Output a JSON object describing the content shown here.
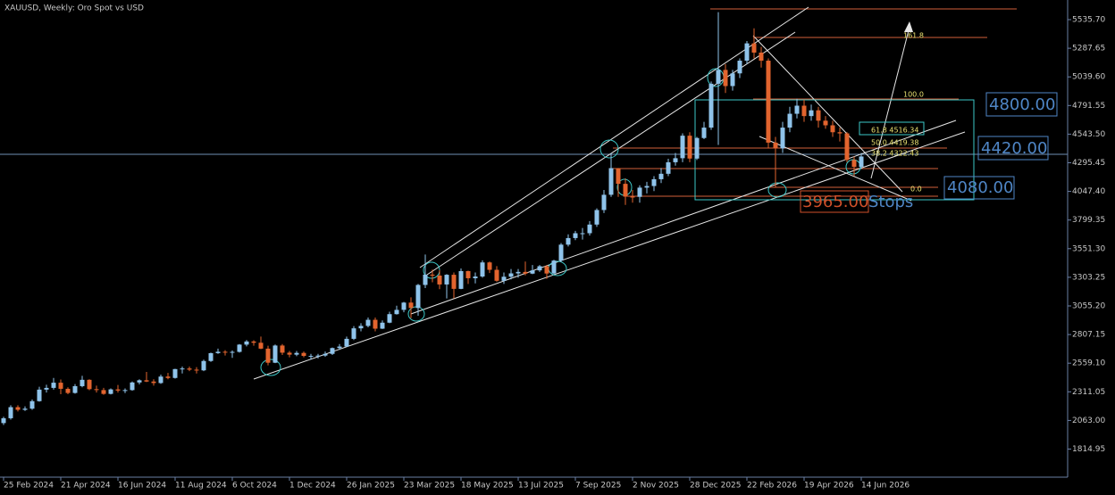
{
  "chart_data": {
    "type": "candlestick",
    "title": "XAUUSD, Weekly:  Oro Spot vs USD",
    "categories": [
      "25 Feb 2024",
      null,
      null,
      null,
      null,
      null,
      null,
      null,
      "21 Apr 2024",
      null,
      null,
      null,
      null,
      null,
      null,
      null,
      "16 Jun 2024",
      null,
      null,
      null,
      null,
      null,
      null,
      null,
      "11 Aug 2024",
      null,
      null,
      null,
      null,
      null,
      null,
      null,
      "6 Oct 2024",
      null,
      null,
      null,
      null,
      null,
      null,
      null,
      "1 Dec 2024",
      null,
      null,
      null,
      null,
      null,
      null,
      null,
      "26 Jan 2025",
      null,
      null,
      null,
      null,
      null,
      null,
      null,
      "23 Mar 2025",
      null,
      null,
      null,
      null,
      null,
      null,
      null,
      "18 May 2025",
      null,
      null,
      null,
      null,
      null,
      null,
      null,
      "13 Jul 2025",
      null,
      null,
      null,
      null,
      null,
      null,
      null,
      "7 Sep 2025",
      null,
      null,
      null,
      null,
      null,
      null,
      null,
      "2 Nov 2025",
      null,
      null,
      null,
      null,
      null,
      null,
      null,
      "28 Dec 2025",
      null,
      null,
      null,
      null,
      null,
      null,
      null,
      "22 Feb 2026",
      null,
      null,
      null,
      null,
      null,
      null,
      null,
      "19 Apr 2026",
      null,
      null,
      null,
      null,
      null,
      null,
      null,
      "14 Jun 2026"
    ],
    "open": [
      2040,
      2082,
      2178,
      2155,
      2165,
      2230,
      2330,
      2345,
      2390,
      2337,
      2301,
      2360,
      2415,
      2334,
      2326,
      2293,
      2332,
      2322,
      2326,
      2392,
      2411,
      2400,
      2387,
      2443,
      2431,
      2508,
      2513,
      2503,
      2497,
      2578,
      2646,
      2658,
      2653,
      2657,
      2720,
      2747,
      2736,
      2685,
      2563,
      2712,
      2650,
      2633,
      2648,
      2622,
      2622,
      2625,
      2640,
      2690,
      2703,
      2770,
      2861,
      2882,
      2935,
      2858,
      2910,
      2984,
      3021,
      3084,
      3037,
      3237,
      3326,
      3318,
      3241,
      3325,
      3203,
      3357,
      3295,
      3310,
      3432,
      3368,
      3273,
      3308,
      3337,
      3350,
      3335,
      3363,
      3399,
      3336,
      3448,
      3586,
      3643,
      3685,
      3685,
      3760,
      3886,
      4018,
      4249,
      4113,
      4002,
      4000,
      4080,
      4094,
      4153,
      4200,
      4300,
      4335,
      4530,
      4332,
      4510,
      4600,
      4980,
      5100,
      4960,
      5070,
      5180,
      5330,
      5250,
      5180,
      4470,
      4420,
      4600,
      4720,
      4790,
      4700,
      4750,
      4660,
      4620,
      4560,
      4550,
      4320,
      4260
    ],
    "high": [
      2095,
      2195,
      2195,
      2185,
      2245,
      2355,
      2372,
      2431,
      2418,
      2350,
      2378,
      2450,
      2420,
      2365,
      2345,
      2340,
      2370,
      2340,
      2400,
      2420,
      2483,
      2420,
      2460,
      2475,
      2510,
      2530,
      2530,
      2525,
      2590,
      2650,
      2685,
      2672,
      2670,
      2725,
      2760,
      2758,
      2790,
      2710,
      2721,
      2725,
      2665,
      2665,
      2660,
      2640,
      2640,
      2660,
      2695,
      2725,
      2790,
      2880,
      2905,
      2955,
      2955,
      2930,
      3005,
      3057,
      3090,
      3130,
      3245,
      3500,
      3370,
      3365,
      3330,
      3345,
      3380,
      3360,
      3345,
      3450,
      3440,
      3400,
      3345,
      3375,
      3375,
      3440,
      3410,
      3410,
      3410,
      3455,
      3600,
      3675,
      3705,
      3730,
      3790,
      3900,
      4060,
      4380,
      4250,
      4160,
      4060,
      4100,
      4130,
      4180,
      4250,
      4330,
      4380,
      4550,
      4560,
      4520,
      4650,
      5000,
      5600,
      5150,
      5100,
      5200,
      5350,
      5460,
      5300,
      5200,
      4520,
      4650,
      4780,
      4850,
      4840,
      4800,
      4780,
      4700,
      4660,
      4600,
      4560,
      4350,
      4380
    ],
    "low": [
      2024,
      2070,
      2140,
      2145,
      2155,
      2225,
      2305,
      2330,
      2290,
      2290,
      2295,
      2350,
      2325,
      2305,
      2285,
      2288,
      2305,
      2300,
      2320,
      2375,
      2395,
      2365,
      2380,
      2420,
      2425,
      2470,
      2490,
      2470,
      2490,
      2570,
      2640,
      2625,
      2605,
      2650,
      2705,
      2710,
      2680,
      2540,
      2560,
      2630,
      2610,
      2620,
      2610,
      2590,
      2600,
      2615,
      2630,
      2675,
      2700,
      2760,
      2835,
      2870,
      2835,
      2855,
      2905,
      2980,
      3000,
      2950,
      2970,
      3210,
      3260,
      3200,
      3120,
      3120,
      3200,
      3245,
      3250,
      3300,
      3340,
      3265,
      3245,
      3285,
      3300,
      3320,
      3330,
      3350,
      3290,
      3330,
      3435,
      3570,
      3625,
      3630,
      3665,
      3740,
      3860,
      4000,
      4000,
      3930,
      3950,
      3950,
      4030,
      4050,
      4120,
      4180,
      4270,
      4300,
      4300,
      4320,
      4500,
      4580,
      4450,
      4900,
      4920,
      5030,
      5150,
      5200,
      5120,
      4420,
      4080,
      4380,
      4560,
      4680,
      4650,
      4660,
      4600,
      4590,
      4520,
      4480,
      4300,
      4180,
      4240
    ],
    "close": [
      2082,
      2178,
      2155,
      2165,
      2230,
      2330,
      2345,
      2390,
      2337,
      2301,
      2360,
      2415,
      2334,
      2326,
      2293,
      2332,
      2322,
      2326,
      2392,
      2411,
      2400,
      2387,
      2443,
      2431,
      2508,
      2513,
      2503,
      2497,
      2578,
      2646,
      2658,
      2653,
      2657,
      2720,
      2747,
      2736,
      2685,
      2563,
      2712,
      2650,
      2633,
      2648,
      2622,
      2622,
      2625,
      2640,
      2690,
      2703,
      2770,
      2861,
      2882,
      2935,
      2858,
      2910,
      2984,
      3021,
      3084,
      3037,
      3237,
      3326,
      3318,
      3241,
      3325,
      3203,
      3357,
      3295,
      3310,
      3432,
      3368,
      3273,
      3308,
      3337,
      3350,
      3335,
      3363,
      3399,
      3336,
      3448,
      3586,
      3643,
      3685,
      3685,
      3760,
      3886,
      4018,
      4249,
      4113,
      4002,
      4000,
      4080,
      4094,
      4153,
      4200,
      4300,
      4335,
      4530,
      4332,
      4510,
      4600,
      4980,
      5100,
      4960,
      5070,
      5180,
      5330,
      5250,
      5180,
      4470,
      4420,
      4600,
      4720,
      4790,
      4700,
      4750,
      4660,
      4620,
      4560,
      4550,
      4320,
      4260,
      4350
    ],
    "up_color": "#8fc3ea",
    "down_color": "#e2642e",
    "ylim": [
      1571.5,
      5705.7
    ],
    "yticks": [
      {
        "value": 5535.7,
        "label": "5535.70"
      },
      {
        "value": 5287.65,
        "label": "5287.65"
      },
      {
        "value": 5039.6,
        "label": "5039.60"
      },
      {
        "value": 4791.55,
        "label": "4791.55"
      },
      {
        "value": 4543.5,
        "label": "4543.50"
      },
      {
        "value": 4295.45,
        "label": "4295.45"
      },
      {
        "value": 4047.4,
        "label": "4047.40"
      },
      {
        "value": 3799.35,
        "label": "3799.35"
      },
      {
        "value": 3551.3,
        "label": "3551.30"
      },
      {
        "value": 3303.25,
        "label": "3303.25"
      },
      {
        "value": 3055.2,
        "label": "3055.20"
      },
      {
        "value": 2807.15,
        "label": "2807.15"
      },
      {
        "value": 2559.1,
        "label": "2559.10"
      },
      {
        "value": 2311.05,
        "label": "2311.05"
      },
      {
        "value": 2063,
        "label": "2063.00"
      },
      {
        "value": 1814.95,
        "label": "1814.95"
      }
    ],
    "grid": false,
    "annotations": [
      "4800.00",
      "4420.00",
      "4080.00",
      "3965.00",
      "Stops",
      "161.8",
      "100.0",
      "61.8  4516.34",
      "50.0  4419.38",
      "38.2  4322.43",
      "0.0"
    ]
  }
}
